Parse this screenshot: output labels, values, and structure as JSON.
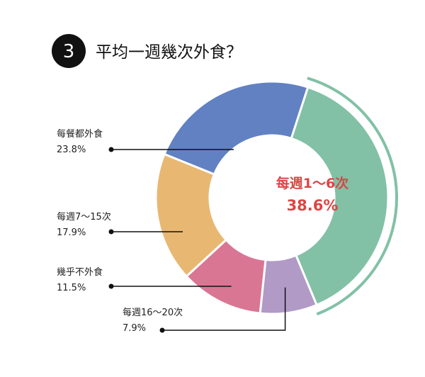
{
  "title": {
    "number": "3",
    "text": "平均一週幾次外食？"
  },
  "chart_data": {
    "type": "pie",
    "variant": "donut",
    "slices": [
      {
        "label": "每週1～6次",
        "value": 38.6,
        "value_text": "38.6%",
        "color": "#82c1a6",
        "highlight": true
      },
      {
        "label": "每週16～20次",
        "value": 7.9,
        "value_text": "7.9%",
        "color": "#b19ac6"
      },
      {
        "label": "幾乎不外食",
        "value": 11.5,
        "value_text": "11.5%",
        "color": "#d97694"
      },
      {
        "label": "每週7～15次",
        "value": 17.9,
        "value_text": "17.9%",
        "color": "#e8b872"
      },
      {
        "label": "每餐都外食",
        "value": 23.8,
        "value_text": "23.8%",
        "color": "#6181c2"
      }
    ],
    "highlight_text_color": "#dc4545",
    "leader_color": "#111111"
  }
}
